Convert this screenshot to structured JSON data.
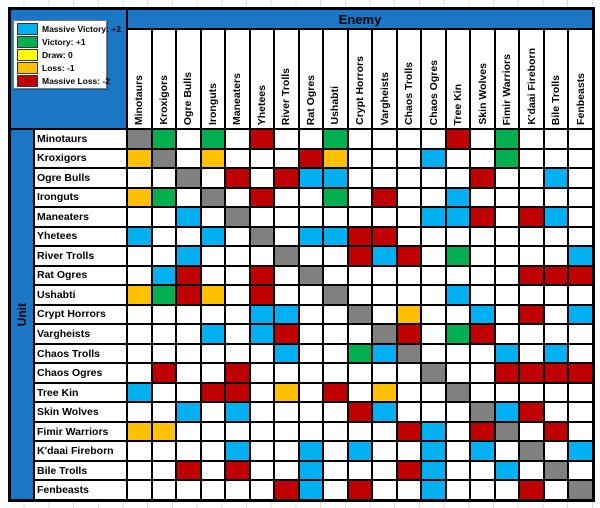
{
  "chart_data": {
    "type": "heatmap",
    "title": "Enemy",
    "row_axis_label": "Unit",
    "legend": [
      {
        "code": "B",
        "label": "Massive Victory: +2",
        "color": "#00B0F0"
      },
      {
        "code": "G",
        "label": "Victory: +1",
        "color": "#00B050"
      },
      {
        "code": "Y",
        "label": "Draw: 0",
        "color": "#FFFF00"
      },
      {
        "code": "O",
        "label": "Loss: -1",
        "color": "#FFC000"
      },
      {
        "code": "R",
        "label": "Massive Loss: -2",
        "color": "#C00000"
      }
    ],
    "code_values": {
      "B": 2,
      "G": 1,
      "Y": 0,
      "O": -1,
      "R": -2,
      "X": "same-unit",
      "": "unmarked"
    },
    "colors": {
      "B": "#00B0F0",
      "G": "#00B050",
      "Y": "#FFFF00",
      "O": "#FFC000",
      "R": "#C00000",
      "X": "#808080",
      "": "#FFFFFF"
    },
    "panel_blue": "#1B77C5",
    "units": [
      "Minotaurs",
      "Kroxigors",
      "Ogre Bulls",
      "Ironguts",
      "Maneaters",
      "Yhetees",
      "River Trolls",
      "Rat Ogres",
      "Ushabti",
      "Crypt Horrors",
      "Vargheists",
      "Chaos Trolls",
      "Chaos Ogres",
      "Tree Kin",
      "Skin Wolves",
      "Fimir Warriors",
      "K'daai Fireborn",
      "Bile Trolls",
      "Fenbeasts"
    ],
    "matrix": [
      [
        "X",
        "G",
        "",
        "G",
        "",
        "R",
        "",
        "",
        "G",
        "",
        "",
        "",
        "",
        "R",
        "",
        "G",
        "",
        "",
        ""
      ],
      [
        "O",
        "X",
        "",
        "O",
        "",
        "",
        "",
        "R",
        "O",
        "",
        "",
        "",
        "B",
        "",
        "",
        "G",
        "",
        "",
        ""
      ],
      [
        "",
        "",
        "X",
        "",
        "R",
        "",
        "R",
        "B",
        "B",
        "",
        "",
        "",
        "",
        "",
        "R",
        "",
        "",
        "B",
        ""
      ],
      [
        "O",
        "G",
        "",
        "X",
        "",
        "R",
        "",
        "",
        "G",
        "",
        "R",
        "",
        "",
        "B",
        "",
        "",
        "",
        "",
        ""
      ],
      [
        "",
        "",
        "B",
        "",
        "X",
        "",
        "",
        "",
        "",
        "",
        "",
        "",
        "B",
        "B",
        "R",
        "",
        "R",
        "B",
        ""
      ],
      [
        "B",
        "",
        "",
        "B",
        "",
        "X",
        "",
        "B",
        "B",
        "R",
        "R",
        "",
        "",
        "",
        "",
        "",
        "",
        "",
        ""
      ],
      [
        "",
        "",
        "B",
        "",
        "",
        "",
        "X",
        "",
        "",
        "R",
        "B",
        "R",
        "",
        "G",
        "",
        "",
        "",
        "",
        "B"
      ],
      [
        "",
        "B",
        "R",
        "",
        "",
        "R",
        "",
        "X",
        "",
        "",
        "",
        "",
        "",
        "",
        "",
        "",
        "R",
        "R",
        "R"
      ],
      [
        "O",
        "G",
        "R",
        "O",
        "",
        "R",
        "",
        "",
        "X",
        "",
        "",
        "",
        "",
        "B",
        "",
        "",
        "",
        "",
        ""
      ],
      [
        "",
        "",
        "",
        "",
        "",
        "B",
        "B",
        "",
        "",
        "X",
        "",
        "O",
        "",
        "",
        "B",
        "",
        "R",
        "",
        "B"
      ],
      [
        "",
        "",
        "",
        "B",
        "",
        "B",
        "R",
        "",
        "",
        "",
        "X",
        "R",
        "",
        "G",
        "R",
        "",
        "",
        "",
        ""
      ],
      [
        "",
        "",
        "",
        "",
        "",
        "",
        "B",
        "",
        "",
        "G",
        "B",
        "X",
        "",
        "",
        "",
        "B",
        "",
        "B",
        ""
      ],
      [
        "",
        "R",
        "",
        "",
        "R",
        "",
        "",
        "",
        "",
        "",
        "",
        "",
        "X",
        "",
        "",
        "R",
        "R",
        "R",
        "R"
      ],
      [
        "B",
        "",
        "",
        "R",
        "R",
        "",
        "O",
        "",
        "R",
        "",
        "O",
        "",
        "",
        "X",
        "",
        "",
        "",
        "",
        ""
      ],
      [
        "",
        "",
        "B",
        "",
        "B",
        "",
        "",
        "",
        "",
        "R",
        "B",
        "",
        "",
        "",
        "X",
        "B",
        "R",
        "",
        ""
      ],
      [
        "O",
        "O",
        "",
        "",
        "",
        "",
        "",
        "",
        "",
        "",
        "",
        "R",
        "B",
        "",
        "R",
        "X",
        "",
        "R",
        ""
      ],
      [
        "",
        "",
        "",
        "",
        "B",
        "",
        "",
        "B",
        "",
        "B",
        "",
        "",
        "B",
        "",
        "B",
        "",
        "X",
        "",
        "B"
      ],
      [
        "",
        "",
        "R",
        "",
        "R",
        "",
        "",
        "B",
        "",
        "",
        "",
        "R",
        "B",
        "",
        "",
        "B",
        "",
        "X",
        ""
      ],
      [
        "",
        "",
        "",
        "",
        "",
        "",
        "R",
        "B",
        "",
        "R",
        "",
        "",
        "B",
        "",
        "",
        "",
        "R",
        "",
        "X"
      ]
    ]
  }
}
